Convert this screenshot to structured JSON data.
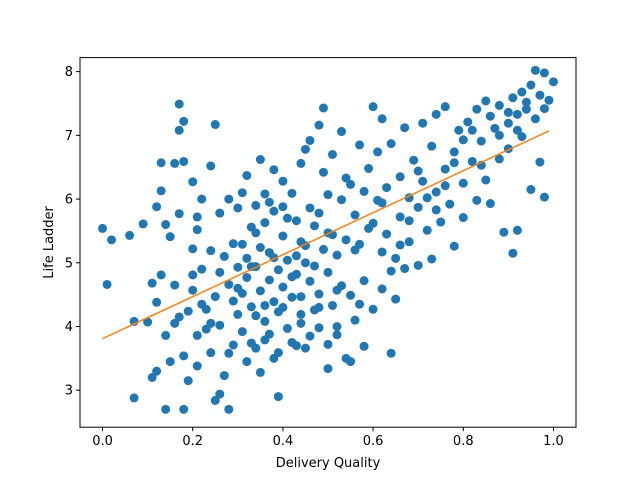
{
  "chart_data": {
    "type": "scatter",
    "title": "",
    "xlabel": "Delivery Quality",
    "ylabel": "Life Ladder",
    "xlim": [
      -0.05,
      1.05
    ],
    "ylim": [
      2.42,
      8.22
    ],
    "xticks": [
      0.0,
      0.2,
      0.4,
      0.6,
      0.8,
      1.0
    ],
    "xtick_labels": [
      "0.0",
      "0.2",
      "0.4",
      "0.6",
      "0.8",
      "1.0"
    ],
    "yticks": [
      3,
      4,
      5,
      6,
      7,
      8
    ],
    "ytick_labels": [
      "3",
      "4",
      "5",
      "6",
      "7",
      "8"
    ],
    "grid": false,
    "colors": {
      "points": "#1f77b4",
      "fit_line": "#ff7f0e"
    },
    "fit_line": {
      "x": [
        0.0,
        0.99
      ],
      "y": [
        3.81,
        7.07
      ]
    },
    "series": [
      {
        "points": [
          [
            0.0,
            5.54
          ],
          [
            0.01,
            4.66
          ],
          [
            0.02,
            5.36
          ],
          [
            0.06,
            5.43
          ],
          [
            0.07,
            4.08
          ],
          [
            0.07,
            2.88
          ],
          [
            0.09,
            5.61
          ],
          [
            0.1,
            4.07
          ],
          [
            0.11,
            3.2
          ],
          [
            0.11,
            4.68
          ],
          [
            0.12,
            5.88
          ],
          [
            0.12,
            3.3
          ],
          [
            0.12,
            4.38
          ],
          [
            0.13,
            4.81
          ],
          [
            0.13,
            6.57
          ],
          [
            0.13,
            6.13
          ],
          [
            0.14,
            5.6
          ],
          [
            0.14,
            3.86
          ],
          [
            0.14,
            2.7
          ],
          [
            0.15,
            5.41
          ],
          [
            0.15,
            3.45
          ],
          [
            0.16,
            4.65
          ],
          [
            0.16,
            6.56
          ],
          [
            0.17,
            5.77
          ],
          [
            0.17,
            4.15
          ],
          [
            0.17,
            7.49
          ],
          [
            0.17,
            7.08
          ],
          [
            0.18,
            6.59
          ],
          [
            0.18,
            2.7
          ],
          [
            0.18,
            7.22
          ],
          [
            0.19,
            4.24
          ],
          [
            0.19,
            3.15
          ],
          [
            0.2,
            6.27
          ],
          [
            0.2,
            5.22
          ],
          [
            0.2,
            4.57
          ],
          [
            0.21,
            3.86
          ],
          [
            0.21,
            5.72
          ],
          [
            0.21,
            3.38
          ],
          [
            0.22,
            6.0
          ],
          [
            0.22,
            4.9
          ],
          [
            0.23,
            3.96
          ],
          [
            0.23,
            4.27
          ],
          [
            0.24,
            6.52
          ],
          [
            0.24,
            5.19
          ],
          [
            0.24,
            3.59
          ],
          [
            0.25,
            7.17
          ],
          [
            0.25,
            4.47
          ],
          [
            0.25,
            2.84
          ],
          [
            0.26,
            2.94
          ],
          [
            0.26,
            5.78
          ],
          [
            0.26,
            4.02
          ],
          [
            0.27,
            3.23
          ],
          [
            0.28,
            6.0
          ],
          [
            0.28,
            2.7
          ],
          [
            0.28,
            4.66
          ],
          [
            0.29,
            5.3
          ],
          [
            0.29,
            3.71
          ],
          [
            0.3,
            4.93
          ],
          [
            0.3,
            5.86
          ],
          [
            0.3,
            4.19
          ],
          [
            0.31,
            6.1
          ],
          [
            0.31,
            3.92
          ],
          [
            0.31,
            4.52
          ],
          [
            0.32,
            5.07
          ],
          [
            0.32,
            6.37
          ],
          [
            0.32,
            4.77
          ],
          [
            0.33,
            5.56
          ],
          [
            0.33,
            3.74
          ],
          [
            0.33,
            4.31
          ],
          [
            0.34,
            5.9
          ],
          [
            0.34,
            4.94
          ],
          [
            0.34,
            3.66
          ],
          [
            0.35,
            6.62
          ],
          [
            0.35,
            5.24
          ],
          [
            0.35,
            4.56
          ],
          [
            0.35,
            3.28
          ],
          [
            0.36,
            4.08
          ],
          [
            0.36,
            5.63
          ],
          [
            0.36,
            6.08
          ],
          [
            0.37,
            4.73
          ],
          [
            0.37,
            3.88
          ],
          [
            0.37,
            5.16
          ],
          [
            0.38,
            6.46
          ],
          [
            0.38,
            4.39
          ],
          [
            0.38,
            5.81
          ],
          [
            0.39,
            2.9
          ],
          [
            0.39,
            4.89
          ],
          [
            0.39,
            3.59
          ],
          [
            0.4,
            5.42
          ],
          [
            0.4,
            4.62
          ],
          [
            0.4,
            6.28
          ],
          [
            0.41,
            5.04
          ],
          [
            0.41,
            3.97
          ],
          [
            0.41,
            5.7
          ],
          [
            0.42,
            4.46
          ],
          [
            0.42,
            6.09
          ],
          [
            0.43,
            5.11
          ],
          [
            0.43,
            3.7
          ],
          [
            0.43,
            4.82
          ],
          [
            0.44,
            6.56
          ],
          [
            0.44,
            5.33
          ],
          [
            0.44,
            4.19
          ],
          [
            0.45,
            6.78
          ],
          [
            0.45,
            5.0
          ],
          [
            0.45,
            3.66
          ],
          [
            0.46,
            4.71
          ],
          [
            0.46,
            5.86
          ],
          [
            0.46,
            6.92
          ],
          [
            0.47,
            4.26
          ],
          [
            0.47,
            5.58
          ],
          [
            0.48,
            7.16
          ],
          [
            0.48,
            4.51
          ],
          [
            0.48,
            3.98
          ],
          [
            0.49,
            6.42
          ],
          [
            0.49,
            5.21
          ],
          [
            0.49,
            7.43
          ],
          [
            0.5,
            4.85
          ],
          [
            0.5,
            6.07
          ],
          [
            0.5,
            3.34
          ],
          [
            0.51,
            5.44
          ],
          [
            0.51,
            4.33
          ],
          [
            0.51,
            6.7
          ],
          [
            0.52,
            5.12
          ],
          [
            0.52,
            3.87
          ],
          [
            0.53,
            5.99
          ],
          [
            0.53,
            4.64
          ],
          [
            0.53,
            7.06
          ],
          [
            0.54,
            5.36
          ],
          [
            0.54,
            3.5
          ],
          [
            0.55,
            6.23
          ],
          [
            0.55,
            4.49
          ],
          [
            0.56,
            5.75
          ],
          [
            0.56,
            4.1
          ],
          [
            0.57,
            6.85
          ],
          [
            0.57,
            5.29
          ],
          [
            0.58,
            4.72
          ],
          [
            0.58,
            3.69
          ],
          [
            0.59,
            6.48
          ],
          [
            0.59,
            5.54
          ],
          [
            0.6,
            7.45
          ],
          [
            0.6,
            4.27
          ],
          [
            0.61,
            5.98
          ],
          [
            0.61,
            6.74
          ],
          [
            0.62,
            5.17
          ],
          [
            0.62,
            7.26
          ],
          [
            0.62,
            4.59
          ],
          [
            0.63,
            6.18
          ],
          [
            0.63,
            5.45
          ],
          [
            0.64,
            3.58
          ],
          [
            0.64,
            6.87
          ],
          [
            0.65,
            5.07
          ],
          [
            0.65,
            4.43
          ],
          [
            0.66,
            6.35
          ],
          [
            0.66,
            5.72
          ],
          [
            0.67,
            7.12
          ],
          [
            0.67,
            4.91
          ],
          [
            0.68,
            6.02
          ],
          [
            0.68,
            5.33
          ],
          [
            0.69,
            6.61
          ],
          [
            0.7,
            5.87
          ],
          [
            0.7,
            4.96
          ],
          [
            0.71,
            7.19
          ],
          [
            0.71,
            6.28
          ],
          [
            0.72,
            5.51
          ],
          [
            0.73,
            6.83
          ],
          [
            0.73,
            5.06
          ],
          [
            0.74,
            6.11
          ],
          [
            0.74,
            7.33
          ],
          [
            0.75,
            5.64
          ],
          [
            0.76,
            6.47
          ],
          [
            0.76,
            7.45
          ],
          [
            0.77,
            5.92
          ],
          [
            0.78,
            6.74
          ],
          [
            0.78,
            5.26
          ],
          [
            0.79,
            7.08
          ],
          [
            0.8,
            6.25
          ],
          [
            0.8,
            5.71
          ],
          [
            0.81,
            7.21
          ],
          [
            0.82,
            6.59
          ],
          [
            0.83,
            7.41
          ],
          [
            0.83,
            5.98
          ],
          [
            0.84,
            6.91
          ],
          [
            0.85,
            7.54
          ],
          [
            0.85,
            6.3
          ],
          [
            0.86,
            5.93
          ],
          [
            0.87,
            7.11
          ],
          [
            0.88,
            6.63
          ],
          [
            0.88,
            7.47
          ],
          [
            0.89,
            5.48
          ],
          [
            0.9,
            7.19
          ],
          [
            0.9,
            6.79
          ],
          [
            0.91,
            7.59
          ],
          [
            0.91,
            5.15
          ],
          [
            0.92,
            7.33
          ],
          [
            0.92,
            5.51
          ],
          [
            0.93,
            6.98
          ],
          [
            0.93,
            7.68
          ],
          [
            0.94,
            7.41
          ],
          [
            0.95,
            6.15
          ],
          [
            0.95,
            7.79
          ],
          [
            0.96,
            8.02
          ],
          [
            0.96,
            7.26
          ],
          [
            0.97,
            6.58
          ],
          [
            0.97,
            7.63
          ],
          [
            0.98,
            6.03
          ],
          [
            0.98,
            7.42
          ],
          [
            0.98,
            7.98
          ],
          [
            0.99,
            7.55
          ],
          [
            1.0,
            7.84
          ],
          [
            0.21,
            5.52
          ],
          [
            0.27,
            5.1
          ],
          [
            0.29,
            4.4
          ],
          [
            0.31,
            5.29
          ],
          [
            0.33,
            4.94
          ],
          [
            0.34,
            5.47
          ],
          [
            0.36,
            4.33
          ],
          [
            0.37,
            5.95
          ],
          [
            0.38,
            5.08
          ],
          [
            0.39,
            4.23
          ],
          [
            0.4,
            5.88
          ],
          [
            0.42,
            4.78
          ],
          [
            0.43,
            5.66
          ],
          [
            0.44,
            4.47
          ],
          [
            0.45,
            5.27
          ],
          [
            0.47,
            4.95
          ],
          [
            0.48,
            5.78
          ],
          [
            0.5,
            5.47
          ],
          [
            0.52,
            4.57
          ],
          [
            0.54,
            6.33
          ],
          [
            0.56,
            5.2
          ],
          [
            0.58,
            6.12
          ],
          [
            0.6,
            5.62
          ],
          [
            0.62,
            5.94
          ],
          [
            0.64,
            4.87
          ],
          [
            0.66,
            5.28
          ],
          [
            0.68,
            5.66
          ],
          [
            0.7,
            6.44
          ],
          [
            0.72,
            6.02
          ],
          [
            0.74,
            5.83
          ],
          [
            0.76,
            6.21
          ],
          [
            0.78,
            6.57
          ],
          [
            0.8,
            6.93
          ],
          [
            0.82,
            7.08
          ],
          [
            0.84,
            6.53
          ],
          [
            0.86,
            7.3
          ],
          [
            0.88,
            7.0
          ],
          [
            0.9,
            7.36
          ],
          [
            0.92,
            7.08
          ],
          [
            0.94,
            7.52
          ],
          [
            0.16,
            4.05
          ],
          [
            0.18,
            3.54
          ],
          [
            0.2,
            4.81
          ],
          [
            0.22,
            4.35
          ],
          [
            0.24,
            4.05
          ],
          [
            0.26,
            4.85
          ],
          [
            0.28,
            3.58
          ],
          [
            0.3,
            4.6
          ],
          [
            0.32,
            3.45
          ],
          [
            0.34,
            4.17
          ],
          [
            0.36,
            3.79
          ],
          [
            0.38,
            3.5
          ],
          [
            0.4,
            4.3
          ],
          [
            0.42,
            3.75
          ],
          [
            0.44,
            4.05
          ],
          [
            0.46,
            3.85
          ],
          [
            0.48,
            4.3
          ],
          [
            0.5,
            3.72
          ],
          [
            0.52,
            4.0
          ],
          [
            0.55,
            3.45
          ],
          [
            0.57,
            4.35
          ]
        ]
      }
    ]
  }
}
